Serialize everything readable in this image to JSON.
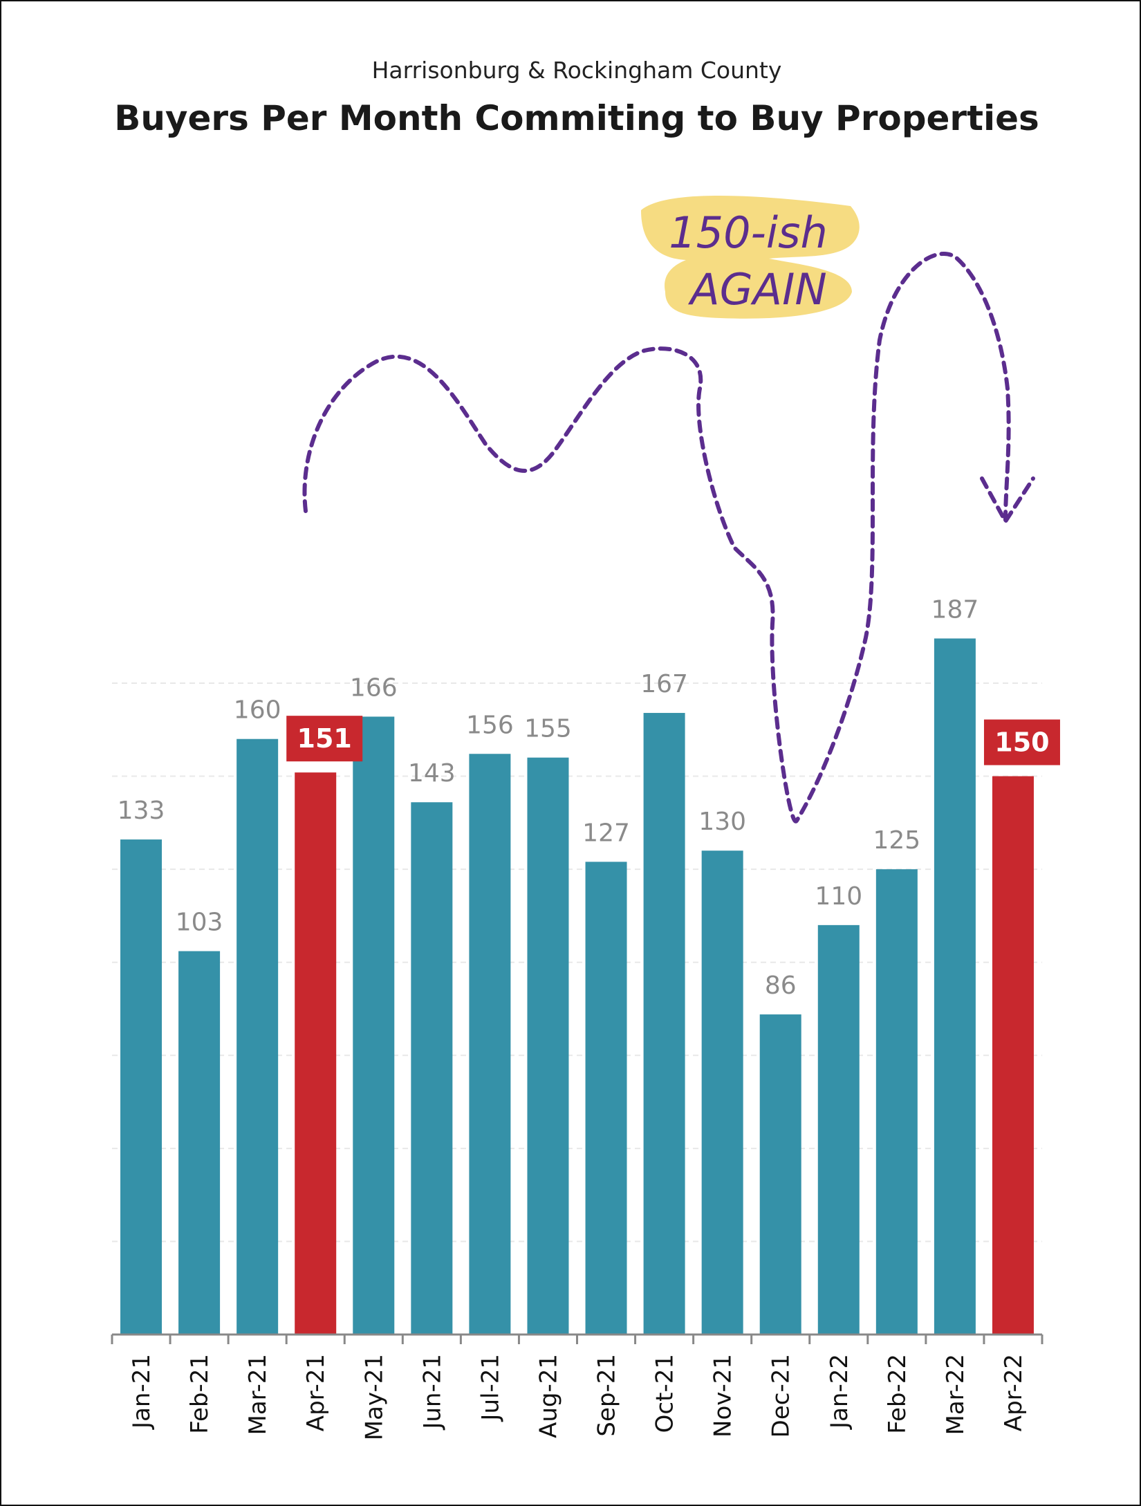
{
  "colors": {
    "bar": "#3591a8",
    "highlight": "#c8282e",
    "annotation_line": "#5b2d8e",
    "annotation_highlight": "#f6dc82",
    "grid": "#e8e8e8",
    "axis": "#888888"
  },
  "chart_data": {
    "type": "bar",
    "subtitle": "Harrisonburg & Rockingham County",
    "title": "Buyers Per Month Commiting to Buy Properties",
    "xlabel": "",
    "ylabel": "",
    "ylim": [
      0,
      200
    ],
    "grid": true,
    "categories": [
      "Jan-21",
      "Feb-21",
      "Mar-21",
      "Apr-21",
      "May-21",
      "Jun-21",
      "Jul-21",
      "Aug-21",
      "Sep-21",
      "Oct-21",
      "Nov-21",
      "Dec-21",
      "Jan-22",
      "Feb-22",
      "Mar-22",
      "Apr-22"
    ],
    "values": [
      133,
      103,
      160,
      151,
      166,
      143,
      156,
      155,
      127,
      167,
      130,
      86,
      110,
      125,
      187,
      150
    ],
    "highlighted": [
      "Apr-21",
      "Apr-22"
    ],
    "annotations": [
      {
        "text_line1": "150-ish",
        "text_line2": "AGAIN"
      }
    ]
  }
}
